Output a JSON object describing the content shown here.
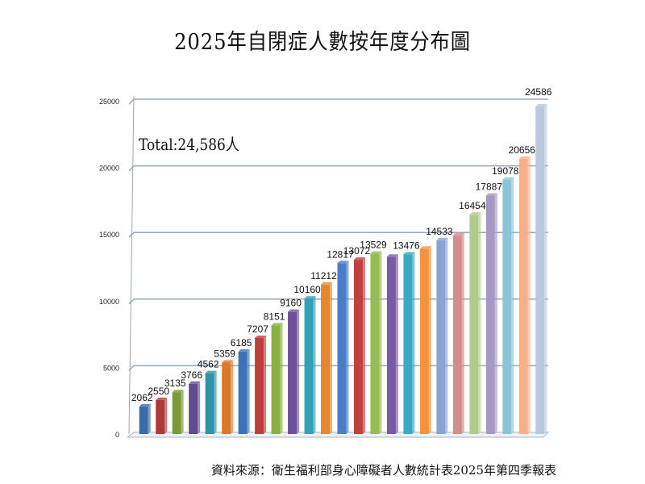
{
  "title": "2025年自閉症人數按年度分布圖",
  "total_text": "Total:24,586人",
  "source": "資料來源：衛生福利部身心障礙者人數統計表2025年第四季報表",
  "chart_data": {
    "type": "bar",
    "title": "2025年自閉症人數按年度分布圖",
    "xlabel": "",
    "ylabel": "",
    "ylim": [
      0,
      25000
    ],
    "yticks": [
      "0",
      "5000",
      "10000",
      "15000",
      "20000",
      "25000"
    ],
    "grid": true,
    "highlight_color": "#e0201a",
    "bars": [
      {
        "value": 2062,
        "label": "2062",
        "color": "#3a6aa8"
      },
      {
        "value": 2550,
        "label": "2550",
        "color": "#b03a38"
      },
      {
        "value": 3135,
        "label": "3135",
        "color": "#7a9a3a"
      },
      {
        "value": 3766,
        "label": "3766",
        "color": "#624a8e"
      },
      {
        "value": 4562,
        "label": "4562",
        "color": "#2e93a8"
      },
      {
        "value": 5359,
        "label": "5359",
        "color": "#d77a2c"
      },
      {
        "value": 6185,
        "label": "6185",
        "color": "#3d74b8"
      },
      {
        "value": 7207,
        "label": "7207",
        "color": "#be3e3c"
      },
      {
        "value": 8151,
        "label": "8151",
        "color": "#8ab044"
      },
      {
        "value": 9160,
        "label": "9160",
        "color": "#6e509a"
      },
      {
        "value": 10160,
        "label": "10160",
        "color": "#32a0b6"
      },
      {
        "value": 11212,
        "label": "11212",
        "color": "#e8862e"
      },
      {
        "value": 12817,
        "label": "12817",
        "color": "#4a7ec4"
      },
      {
        "value": 13072,
        "label": "13072",
        "color": "#c0423f"
      },
      {
        "value": 13529,
        "label": "13529",
        "color": "#98bb52"
      },
      {
        "value": 13300,
        "label": "",
        "color": "#7a5aa6"
      },
      {
        "value": 13476,
        "label": "13476",
        "color": "#3aaac4"
      },
      {
        "value": 13900,
        "label": "",
        "color": "#f39240"
      },
      {
        "value": 14533,
        "label": "14533",
        "color": "#8aa4d2"
      },
      {
        "value": 14900,
        "label": "",
        "color": "#d48c8c"
      },
      {
        "value": 16454,
        "label": "16454",
        "color": "#b0cc8c"
      },
      {
        "value": 17887,
        "label": "17887",
        "color": "#a698c4"
      },
      {
        "value": 19078,
        "label": "19078",
        "color": "#8cc4d8"
      },
      {
        "value": 20656,
        "label": "20656",
        "color": "#f8b088"
      },
      {
        "value": 24586,
        "label": "24586",
        "color": "#b8c8de",
        "highlight": true
      }
    ]
  }
}
